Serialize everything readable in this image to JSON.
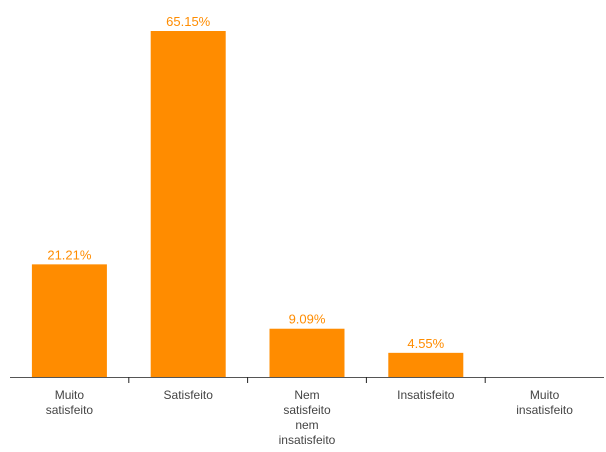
{
  "chart_data": {
    "type": "bar",
    "title": "",
    "xlabel": "",
    "ylabel": "",
    "categories": [
      [
        "Muito",
        "satisfeito"
      ],
      [
        "Satisfeito"
      ],
      [
        "Nem",
        "satisfeito",
        "nem",
        "insatisfeito"
      ],
      [
        "Insatisfeito"
      ],
      [
        "Muito",
        "insatisfeito"
      ]
    ],
    "values": [
      21.21,
      65.15,
      9.09,
      4.55,
      0
    ],
    "value_labels": [
      "21.21%",
      "65.15%",
      "9.09%",
      "4.55%",
      ""
    ],
    "ylim": [
      0,
      65.15
    ],
    "grid": false,
    "legend": "none"
  },
  "colors": {
    "bar": "#ff8c00",
    "value_label": "#ff8c00",
    "category_label": "#444444",
    "axis": "#555555"
  }
}
